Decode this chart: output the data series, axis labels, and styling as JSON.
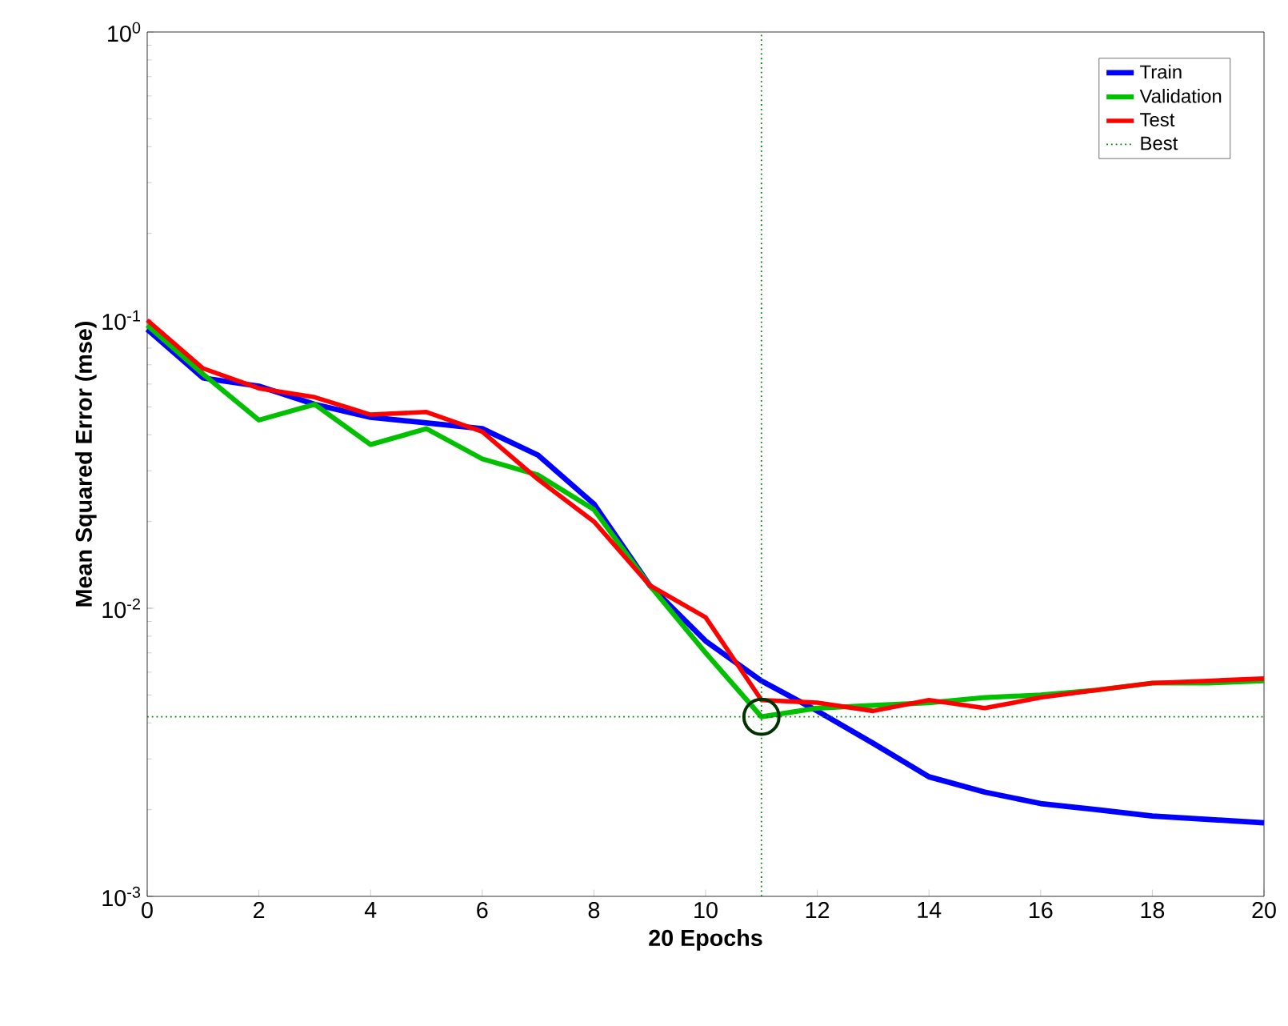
{
  "chart_data": {
    "type": "line",
    "xlabel": "20 Epochs",
    "ylabel": "Mean Squared Error  (mse)",
    "x": [
      0,
      1,
      2,
      3,
      4,
      5,
      6,
      7,
      8,
      9,
      10,
      11,
      12,
      13,
      14,
      15,
      16,
      17,
      18,
      19,
      20
    ],
    "series": [
      {
        "name": "Train",
        "color": "#0000ff",
        "values": [
          0.093,
          0.063,
          0.059,
          0.051,
          0.046,
          0.044,
          0.042,
          0.034,
          0.023,
          0.012,
          0.0077,
          0.0056,
          0.0044,
          0.0034,
          0.0026,
          0.0023,
          0.0021,
          0.002,
          0.0019,
          0.00185,
          0.0018
        ]
      },
      {
        "name": "Validation",
        "color": "#00c000",
        "values": [
          0.096,
          0.065,
          0.045,
          0.051,
          0.037,
          0.042,
          0.033,
          0.029,
          0.022,
          0.012,
          0.007,
          0.0042,
          0.0045,
          0.0046,
          0.0047,
          0.0049,
          0.005,
          0.0052,
          0.0055,
          0.0055,
          0.0056
        ]
      },
      {
        "name": "Test",
        "color": "#ff0000",
        "values": [
          0.1,
          0.068,
          0.058,
          0.054,
          0.047,
          0.048,
          0.041,
          0.028,
          0.02,
          0.012,
          0.0093,
          0.0048,
          0.0047,
          0.0044,
          0.0048,
          0.0045,
          0.0049,
          0.0052,
          0.0055,
          0.0056,
          0.0057
        ]
      },
      {
        "type": "scatter",
        "marker": "circle",
        "color": "#003300",
        "x": [
          11
        ],
        "values": [
          0.0042
        ]
      }
    ],
    "marker": "none",
    "log": "y",
    "legend": "top right",
    "grid": false,
    "xlim": [
      0,
      20
    ],
    "xticks": [
      0,
      2,
      4,
      6,
      8,
      10,
      12,
      14,
      16,
      18,
      20
    ],
    "ylim": [
      0.001,
      1
    ],
    "yticks": [
      {
        "value": 0.001,
        "label": "10$^{-3}$"
      },
      {
        "value": 0.01,
        "label": "10$^{-2}$"
      },
      {
        "value": 0.1,
        "label": "10$^{-1}$"
      },
      {
        "value": 1,
        "label": "10$^{0}$"
      }
    ],
    "ref_lines": [
      {
        "axis": "y",
        "value": 0.0042,
        "label": "Best",
        "color": "#008000",
        "line_style": "dotted"
      },
      {
        "axis": "x",
        "value": 11,
        "color": "#008000",
        "line_style": "dotted"
      }
    ]
  }
}
